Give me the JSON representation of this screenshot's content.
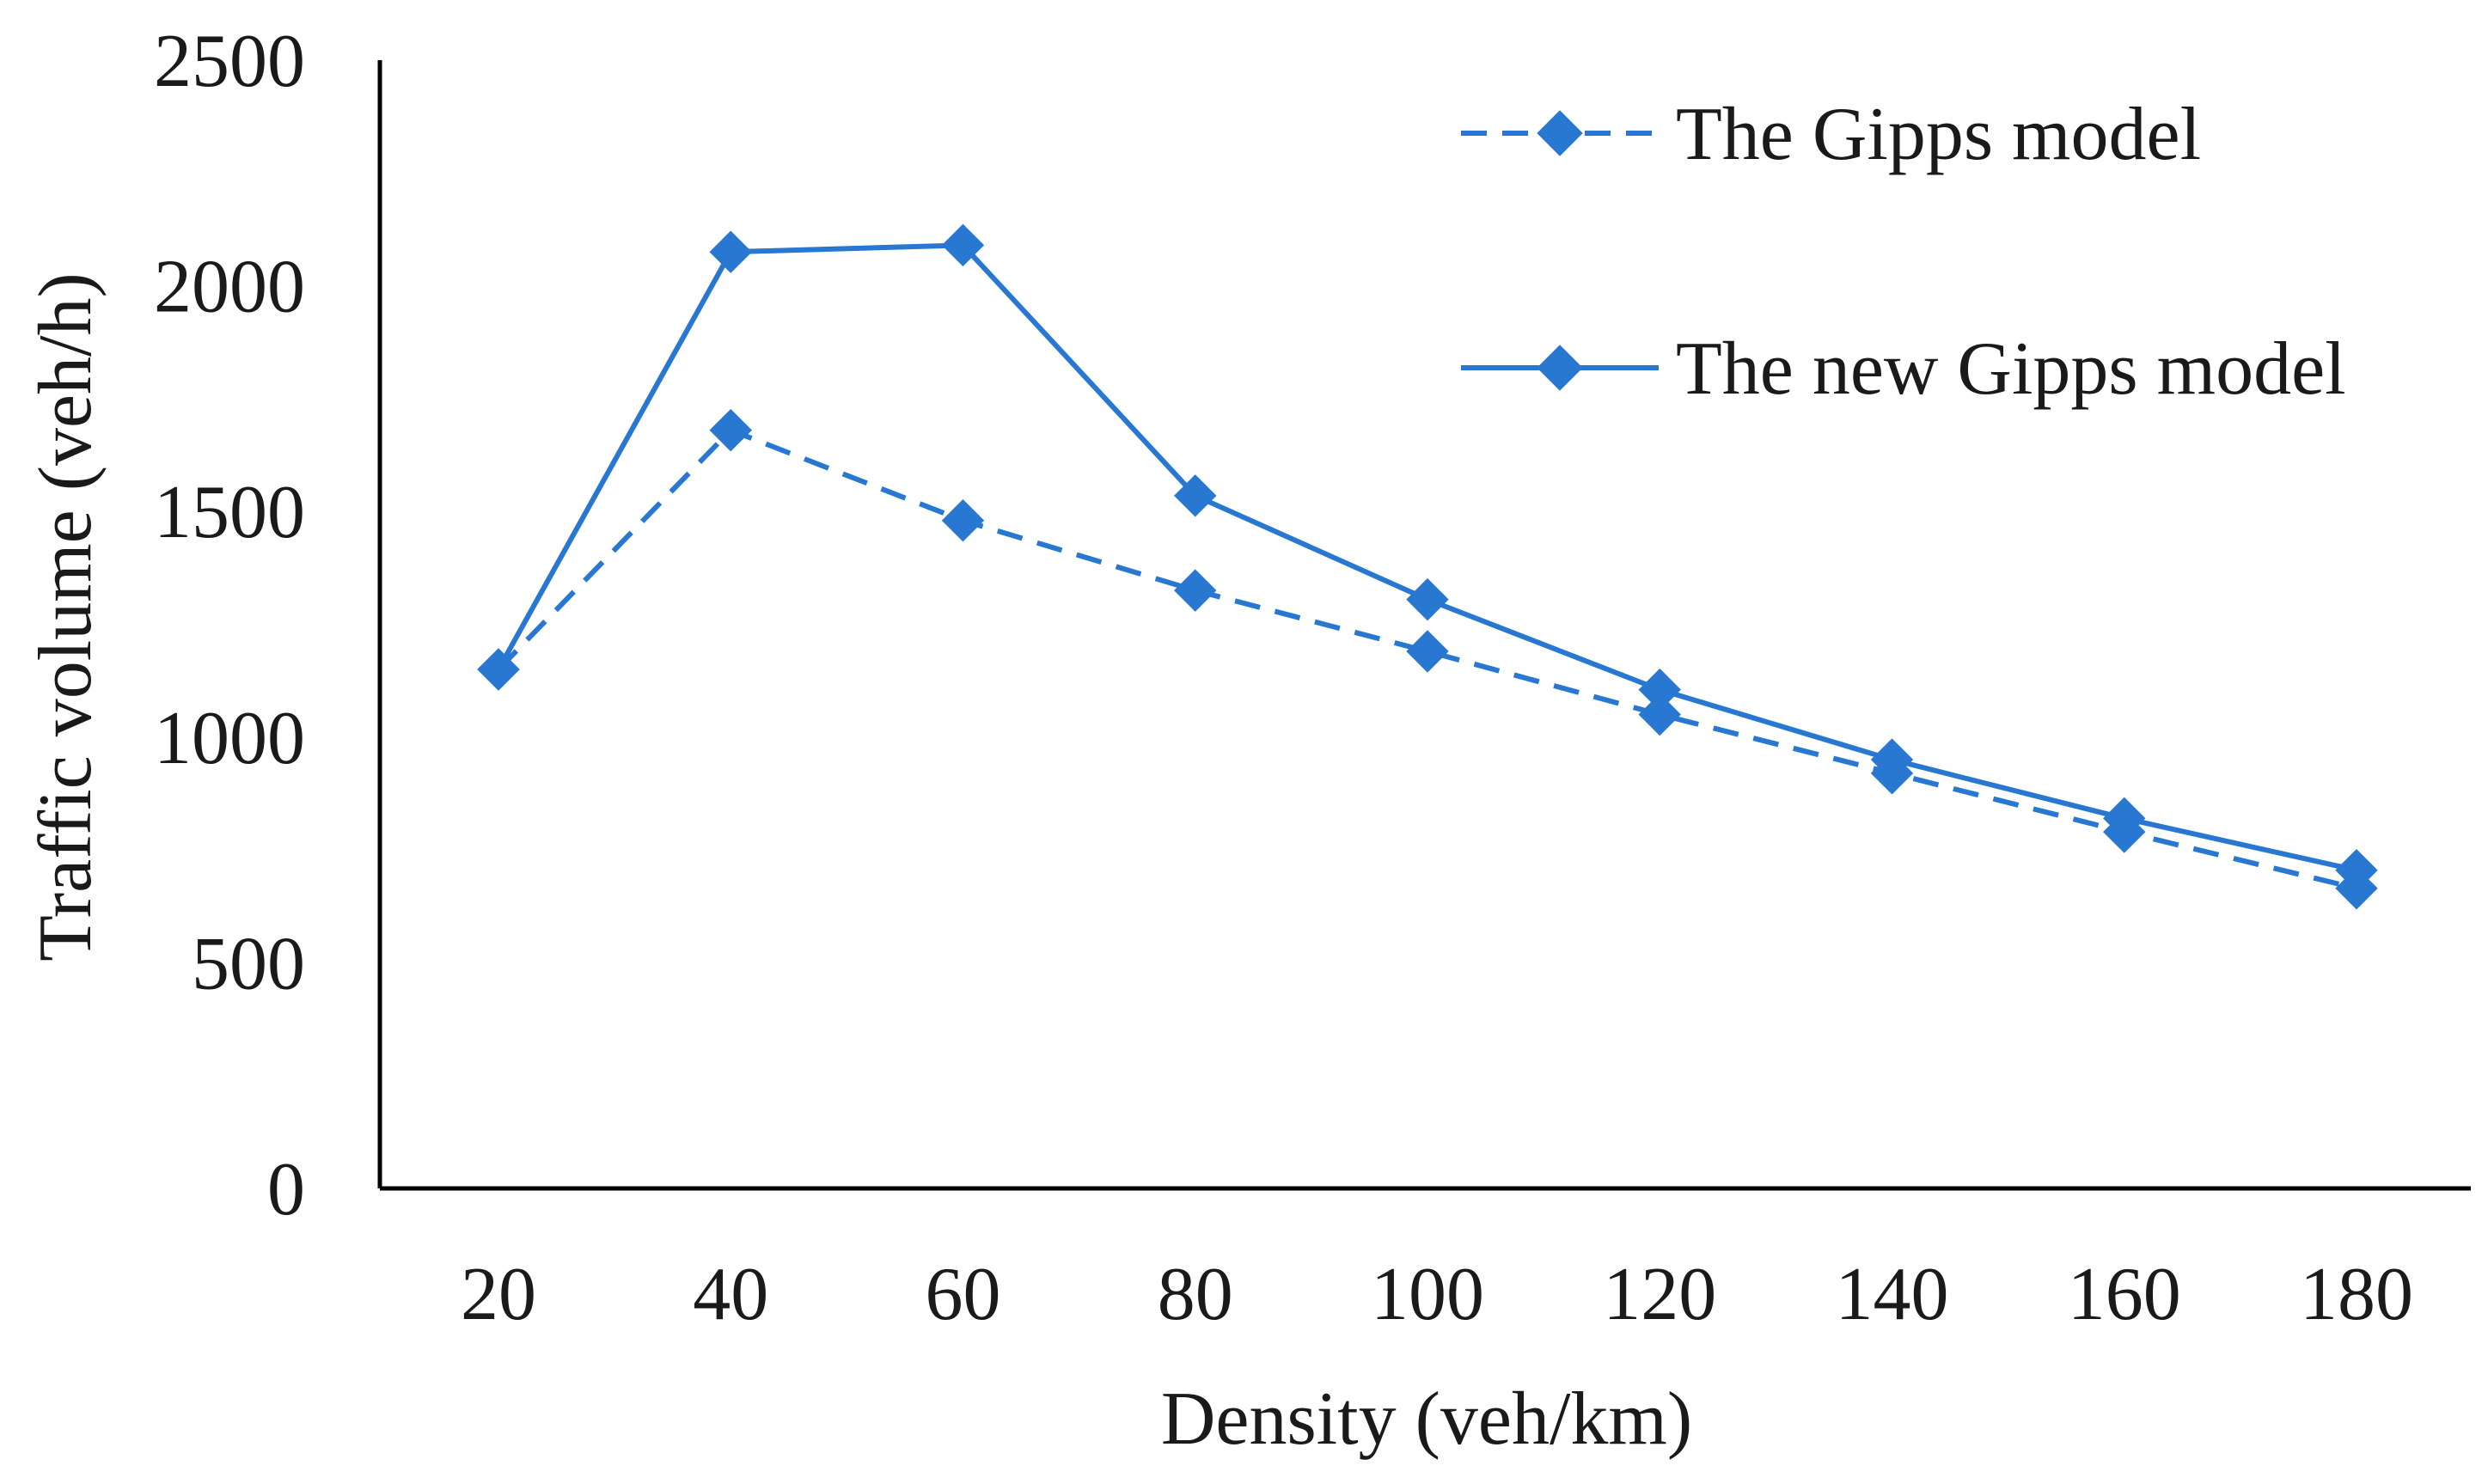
{
  "chart_data": {
    "type": "line",
    "title": "",
    "xlabel": "Density (veh/km)",
    "ylabel": "Traffic volume (veh/h)",
    "categories": [
      "20",
      "40",
      "60",
      "80",
      "100",
      "120",
      "140",
      "160",
      "180"
    ],
    "ylim": [
      0,
      2500
    ],
    "yticks": [
      "0",
      "500",
      "1000",
      "1500",
      "2000",
      "2500"
    ],
    "grid": false,
    "legend_position": "top-right",
    "series": [
      {
        "name": "The Gipps model",
        "style": "dashed",
        "marker": "diamond",
        "color": "#2878d2",
        "values": [
          1150,
          1680,
          1480,
          1325,
          1190,
          1050,
          920,
          790,
          665
        ]
      },
      {
        "name": "The new Gipps model",
        "style": "solid",
        "marker": "diamond",
        "color": "#2878d2",
        "values": [
          1150,
          2075,
          2090,
          1535,
          1305,
          1105,
          950,
          820,
          705
        ]
      }
    ]
  }
}
